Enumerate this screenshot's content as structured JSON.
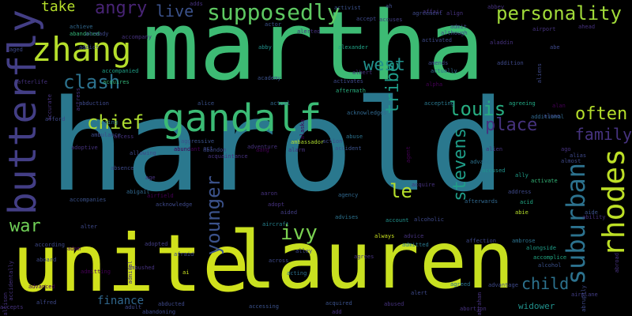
{
  "words": [
    {
      "text": "martha",
      "color": "#3dbb74"
    },
    {
      "text": "harold",
      "color": "#2a788e"
    },
    {
      "text": "unite",
      "color": "#d0e11c"
    },
    {
      "text": "lauren",
      "color": "#c8e020"
    },
    {
      "text": "butterfly",
      "color": "#433e85"
    },
    {
      "text": "gandalf",
      "color": "#3bbb75"
    },
    {
      "text": "zhang",
      "color": "#b5de2b"
    },
    {
      "text": "supposedly",
      "color": "#5ec962"
    },
    {
      "text": "personality",
      "color": "#a0da39"
    },
    {
      "text": "angry",
      "color": "#482475"
    },
    {
      "text": "take",
      "color": "#b5de2b"
    },
    {
      "text": "live",
      "color": "#3b528b"
    },
    {
      "text": "clash",
      "color": "#2c728e"
    },
    {
      "text": "chief",
      "color": "#addc30"
    },
    {
      "text": "west",
      "color": "#21918c"
    },
    {
      "text": "louis",
      "color": "#27ad81"
    },
    {
      "text": "place",
      "color": "#46327e"
    },
    {
      "text": "often",
      "color": "#b5de2b"
    },
    {
      "text": "family",
      "color": "#46337f"
    },
    {
      "text": "tribe",
      "color": "#1e9c89"
    },
    {
      "text": "rhodes",
      "color": "#bddf26"
    },
    {
      "text": "suburban",
      "color": "#2c728e"
    },
    {
      "text": "stevens",
      "color": "#1f9e89"
    },
    {
      "text": "younger",
      "color": "#3b528b"
    },
    {
      "text": "ivy",
      "color": "#7ad151"
    },
    {
      "text": "le",
      "color": "#b5de2b"
    },
    {
      "text": "war",
      "color": "#70cf57"
    },
    {
      "text": "child",
      "color": "#2c728e"
    },
    {
      "text": "finance",
      "color": "#31688e"
    },
    {
      "text": "widower",
      "color": "#21918c"
    },
    {
      "text": "activist",
      "color": "#3b528b"
    },
    {
      "text": "accuses",
      "color": "#433e85"
    },
    {
      "text": "abandoned",
      "color": "#35b779"
    },
    {
      "text": "achieve",
      "color": "#31688e"
    },
    {
      "text": "addict",
      "color": "#3e4989"
    },
    {
      "text": "abby",
      "color": "#21918c"
    },
    {
      "text": "alexander",
      "color": "#20a386"
    },
    {
      "text": "accompanied",
      "color": "#1fa188"
    },
    {
      "text": "acquires",
      "color": "#35b779"
    },
    {
      "text": "alice",
      "color": "#3b528b"
    },
    {
      "text": "actual",
      "color": "#31688e"
    },
    {
      "text": "aftermath",
      "color": "#29af7f"
    },
    {
      "text": "agreement",
      "color": "#3e4989"
    },
    {
      "text": "accepting",
      "color": "#2a788e"
    },
    {
      "text": "agreeing",
      "color": "#22a884"
    },
    {
      "text": "additional",
      "color": "#31688e"
    },
    {
      "text": "aggressive",
      "color": "#3b528b"
    },
    {
      "text": "abandon",
      "color": "#3e4989"
    },
    {
      "text": "adventure",
      "color": "#46327e"
    },
    {
      "text": "ambassador",
      "color": "#addc30"
    },
    {
      "text": "accident",
      "color": "#3b528b"
    },
    {
      "text": "action",
      "color": "#3e4989"
    },
    {
      "text": "advance",
      "color": "#2c728e"
    },
    {
      "text": "accused",
      "color": "#21918c"
    },
    {
      "text": "ally",
      "color": "#1f9e89"
    },
    {
      "text": "activate",
      "color": "#35b779"
    },
    {
      "text": "address",
      "color": "#3e4989"
    },
    {
      "text": "acid",
      "color": "#22a884"
    },
    {
      "text": "abie",
      "color": "#b5de2b"
    },
    {
      "text": "aide",
      "color": "#3b528b"
    },
    {
      "text": "abigail",
      "color": "#31688e"
    },
    {
      "text": "airfield",
      "color": "#440154"
    },
    {
      "text": "acknowledge",
      "color": "#3e4989"
    },
    {
      "text": "adopt",
      "color": "#46327e"
    },
    {
      "text": "aided",
      "color": "#433e85"
    },
    {
      "text": "agency",
      "color": "#31688e"
    },
    {
      "text": "advises",
      "color": "#2c728e"
    },
    {
      "text": "account",
      "color": "#21918c"
    },
    {
      "text": "aircraft",
      "color": "#26828e"
    },
    {
      "text": "always",
      "color": "#c8e020"
    },
    {
      "text": "advice",
      "color": "#46327e"
    },
    {
      "text": "admitted",
      "color": "#2a788e"
    },
    {
      "text": "affection",
      "color": "#3e4989"
    },
    {
      "text": "ambrose",
      "color": "#2c728e"
    },
    {
      "text": "alongside",
      "color": "#1f9e89"
    },
    {
      "text": "accomplice",
      "color": "#22a884"
    },
    {
      "text": "alcohol",
      "color": "#3b528b"
    },
    {
      "text": "airplane",
      "color": "#433e85"
    },
    {
      "text": "alert",
      "color": "#3e4989"
    },
    {
      "text": "agreed",
      "color": "#2c728e"
    },
    {
      "text": "advantage",
      "color": "#3e4989"
    },
    {
      "text": "abortion",
      "color": "#46327e"
    },
    {
      "text": "acquired",
      "color": "#3b528b"
    },
    {
      "text": "abducted",
      "color": "#3e4989"
    },
    {
      "text": "adult",
      "color": "#3e4989"
    },
    {
      "text": "abandoning",
      "color": "#3e4989"
    },
    {
      "text": "accessing",
      "color": "#3b528b"
    },
    {
      "text": "alfred",
      "color": "#3e4989"
    },
    {
      "text": "accepts",
      "color": "#46327e"
    },
    {
      "text": "according",
      "color": "#3e4989"
    },
    {
      "text": "adam",
      "color": "#440154"
    },
    {
      "text": "aboard",
      "color": "#3e4989"
    },
    {
      "text": "adopted",
      "color": "#433e85"
    },
    {
      "text": "ambushed",
      "color": "#46327e"
    },
    {
      "text": "acting",
      "color": "#2c728e"
    },
    {
      "text": "across",
      "color": "#3e4989"
    },
    {
      "text": "aaron",
      "color": "#46327e"
    },
    {
      "text": "aang",
      "color": "#440154"
    },
    {
      "text": "acquire",
      "color": "#46327e"
    },
    {
      "text": "abuse",
      "color": "#2c728e"
    },
    {
      "text": "alcoholic",
      "color": "#3e4989"
    },
    {
      "text": "afterwards",
      "color": "#31688e"
    },
    {
      "text": "acknowledges",
      "color": "#31688e"
    },
    {
      "text": "activates",
      "color": "#3e4989"
    },
    {
      "text": "albert",
      "color": "#46327e"
    },
    {
      "text": "amends",
      "color": "#3e4989"
    },
    {
      "text": "actually",
      "color": "#31688e"
    },
    {
      "text": "alpha",
      "color": "#440154"
    },
    {
      "text": "academy",
      "color": "#3b528b"
    },
    {
      "text": "abduction",
      "color": "#3e4989"
    },
    {
      "text": "afterlife",
      "color": "#46327e"
    },
    {
      "text": "afford",
      "color": "#3e4989"
    },
    {
      "text": "aging",
      "color": "#2c728e"
    },
    {
      "text": "adoptive",
      "color": "#46327e"
    },
    {
      "text": "ambulance",
      "color": "#3e4989"
    },
    {
      "text": "allowing",
      "color": "#3e4989"
    },
    {
      "text": "access",
      "color": "#46327e"
    },
    {
      "text": "accompanies",
      "color": "#3b528b"
    },
    {
      "text": "actor",
      "color": "#3b528b"
    },
    {
      "text": "alerted",
      "color": "#46327e"
    },
    {
      "text": "accept",
      "color": "#3e4989"
    },
    {
      "text": "activated",
      "color": "#3e4989"
    },
    {
      "text": "although",
      "color": "#3e4989"
    },
    {
      "text": "align",
      "color": "#46327e"
    },
    {
      "text": "admit",
      "color": "#3e4989"
    },
    {
      "text": "airport",
      "color": "#46327e"
    },
    {
      "text": "ahead",
      "color": "#46327e"
    },
    {
      "text": "abe",
      "color": "#3e4989"
    },
    {
      "text": "addition",
      "color": "#3e4989"
    },
    {
      "text": "abbey",
      "color": "#46327e"
    },
    {
      "text": "affair",
      "color": "#46327e"
    },
    {
      "text": "ah",
      "color": "#3e4989"
    },
    {
      "text": "alone",
      "color": "#3e4989"
    },
    {
      "text": "alan",
      "color": "#440154"
    },
    {
      "text": "ago",
      "color": "#46327e"
    },
    {
      "text": "alias",
      "color": "#3e4989"
    },
    {
      "text": "almost",
      "color": "#3e4989"
    },
    {
      "text": "ability",
      "color": "#46327e"
    },
    {
      "text": "aged",
      "color": "#3e4989"
    },
    {
      "text": "accompany",
      "color": "#46327e"
    },
    {
      "text": "adds",
      "color": "#46327e"
    },
    {
      "text": "act",
      "color": "#3e4989"
    },
    {
      "text": "acquaintance",
      "color": "#46327e"
    },
    {
      "text": "age",
      "color": "#46327e"
    },
    {
      "text": "alter",
      "color": "#3e4989"
    },
    {
      "text": "afraid",
      "color": "#3e4989"
    },
    {
      "text": "ai",
      "color": "#c8e020"
    },
    {
      "text": "alley",
      "color": "#3e4989"
    },
    {
      "text": "agrees",
      "color": "#46327e"
    },
    {
      "text": "abused",
      "color": "#46327e"
    },
    {
      "text": "add",
      "color": "#46327e"
    },
    {
      "text": "advanced",
      "color": "#440154"
    },
    {
      "text": "admitting",
      "color": "#440154"
    },
    {
      "text": "allison",
      "color": "#46327e"
    },
    {
      "text": "accidentally",
      "color": "#46327e"
    },
    {
      "text": "accurate",
      "color": "#46327e"
    },
    {
      "text": "abroad",
      "color": "#46327e"
    },
    {
      "text": "abruptly",
      "color": "#3e4989"
    },
    {
      "text": "aliens",
      "color": "#3e4989"
    },
    {
      "text": "abraham",
      "color": "#46327e"
    },
    {
      "text": "actress",
      "color": "#46327e"
    },
    {
      "text": "admiral",
      "color": "#46327e"
    },
    {
      "text": "alaska",
      "color": "#440154"
    },
    {
      "text": "agent",
      "color": "#440154"
    },
    {
      "text": "alarm",
      "color": "#46327e"
    },
    {
      "text": "alien",
      "color": "#46327e"
    },
    {
      "text": "aladdin",
      "color": "#46327e"
    },
    {
      "text": "absence",
      "color": "#3e4989"
    },
    {
      "text": "already",
      "color": "#3e4989"
    },
    {
      "text": "abundant",
      "color": "#440154"
    }
  ]
}
